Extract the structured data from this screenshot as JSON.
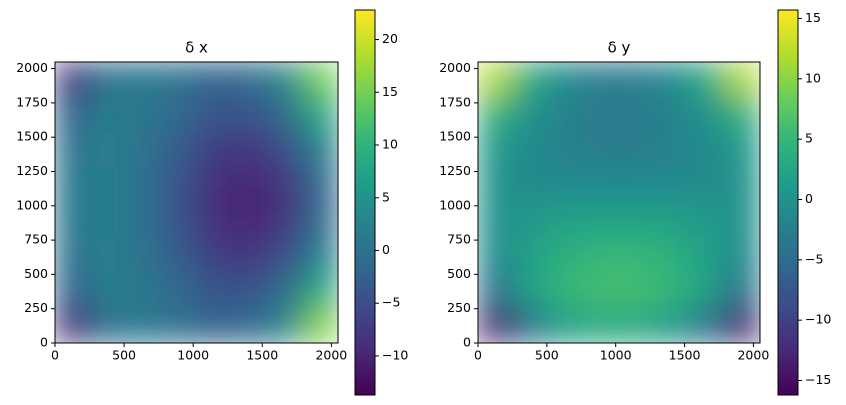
{
  "chart_data": [
    {
      "type": "heatmap",
      "title": "δ x",
      "colormap": "viridis",
      "xlim": [
        0,
        2048
      ],
      "ylim": [
        0,
        2048
      ],
      "xticks": [
        0,
        500,
        1000,
        1500,
        2000
      ],
      "yticks": [
        0,
        250,
        500,
        750,
        1000,
        1250,
        1500,
        1750,
        2000
      ],
      "clim": [
        -13.7,
        22.8
      ],
      "cticks": [
        {
          "value": -10,
          "label": "−10"
        },
        {
          "value": -5,
          "label": "−5"
        },
        0,
        5,
        10,
        15,
        20
      ],
      "z": [
        [
          -8,
          0,
          1,
          0,
          -2,
          -1,
          3,
          15
        ],
        [
          -2,
          2,
          1,
          -1,
          -4,
          -4,
          -1,
          8
        ],
        [
          0,
          2,
          0,
          -3,
          -7,
          -8,
          -5,
          2
        ],
        [
          1,
          2,
          0,
          -4,
          -9,
          -10,
          -8,
          -1
        ],
        [
          1,
          2,
          0,
          -4,
          -9,
          -10,
          -8,
          -1
        ],
        [
          0,
          2,
          0,
          -3,
          -7,
          -8,
          -5,
          2
        ],
        [
          -2,
          2,
          1,
          -1,
          -4,
          -4,
          -1,
          8
        ],
        [
          -9,
          0,
          1,
          0,
          -2,
          -1,
          3,
          16
        ]
      ]
    },
    {
      "type": "heatmap",
      "title": "δ y",
      "colormap": "viridis",
      "xlim": [
        0,
        2048
      ],
      "ylim": [
        0,
        2048
      ],
      "xticks": [
        0,
        500,
        1000,
        1500,
        2000
      ],
      "yticks": [
        0,
        250,
        500,
        750,
        1000,
        1250,
        1500,
        1750,
        2000
      ],
      "clim": [
        -16.2,
        15.7
      ],
      "cticks": [
        {
          "value": -15,
          "label": "−15"
        },
        {
          "value": -10,
          "label": "−10"
        },
        {
          "value": -5,
          "label": "−5"
        },
        0,
        5,
        10,
        15
      ],
      "z": [
        [
          12,
          3,
          -1,
          -3,
          -3,
          -1,
          3,
          12
        ],
        [
          4,
          0,
          -2,
          -3,
          -3,
          -2,
          0,
          4
        ],
        [
          1,
          -1,
          -2,
          -3,
          -3,
          -2,
          -1,
          1
        ],
        [
          0,
          -1,
          -1,
          -1,
          -1,
          -1,
          -1,
          0
        ],
        [
          0,
          1,
          2,
          2,
          2,
          2,
          1,
          0
        ],
        [
          -1,
          2,
          4,
          5,
          5,
          4,
          2,
          -1
        ],
        [
          -4,
          2,
          5,
          6,
          6,
          5,
          2,
          -4
        ],
        [
          -14,
          -4,
          2,
          3,
          3,
          1,
          -4,
          -13
        ]
      ]
    }
  ]
}
